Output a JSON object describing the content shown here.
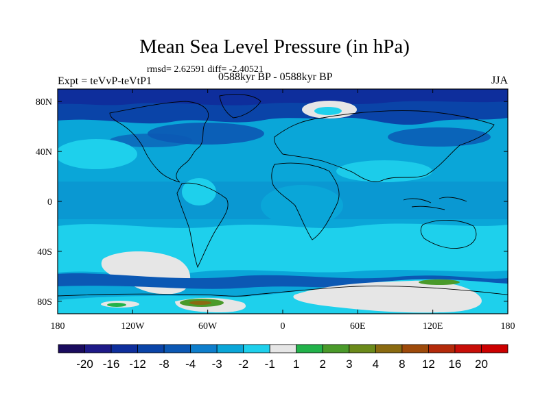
{
  "chart_data": {
    "type": "heatmap",
    "title": "Mean Sea Level Pressure (in hPa)",
    "stats": "rmsd= 2.62591  diff= -2.40521",
    "experiment": "Expt = teVvP-teVtP1",
    "period": "0588kyr BP - 0588kyr BP",
    "season": "JJA",
    "x_ticks": [
      "180",
      "120W",
      "60W",
      "0",
      "60E",
      "120E",
      "180"
    ],
    "y_ticks": [
      "80N",
      "40N",
      "0",
      "40S",
      "80S"
    ],
    "xlim": [
      -180,
      180
    ],
    "ylim": [
      -90,
      90
    ],
    "colorbar": {
      "levels": [
        "-20",
        "-16",
        "-12",
        "-8",
        "-4",
        "-3",
        "-2",
        "-1",
        "1",
        "2",
        "3",
        "4",
        "8",
        "12",
        "16",
        "20"
      ],
      "colors": [
        "#1a0b5e",
        "#1e1a88",
        "#0e2e9c",
        "#0a44a8",
        "#0b58b4",
        "#0e7ecc",
        "#0aa6d8",
        "#1ed0ec",
        "#e6e6e6",
        "#22b24a",
        "#4a9a2a",
        "#6b8a1a",
        "#8a6a10",
        "#9e4a0a",
        "#b42a0a",
        "#c80e08",
        "#cc0000"
      ]
    }
  }
}
